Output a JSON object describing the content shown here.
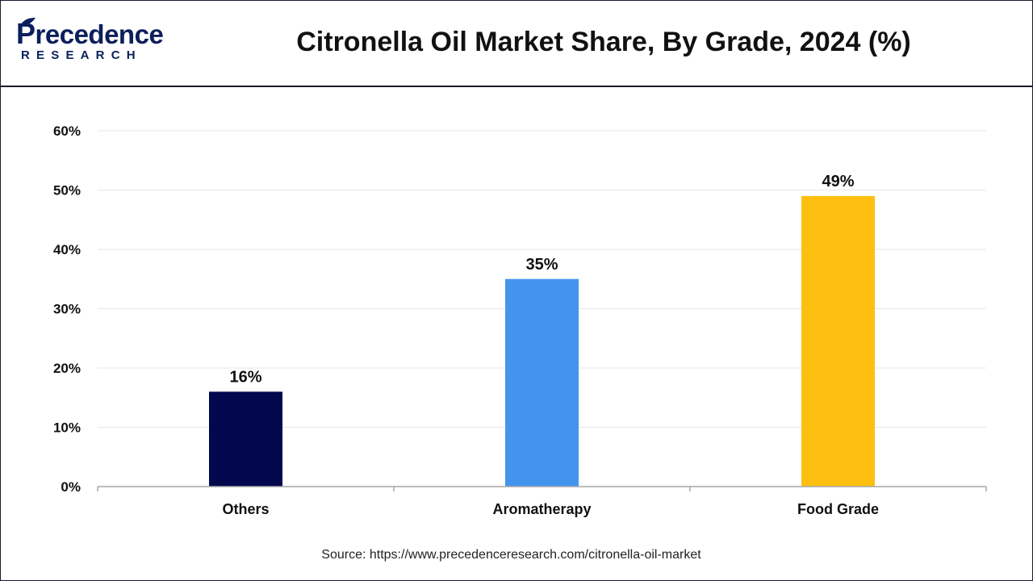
{
  "header": {
    "logo_word": "recedence",
    "logo_sub": "RESEARCH",
    "title": "Citronella Oil Market Share, By Grade, 2024 (%)"
  },
  "source": "Source: https://www.precedenceresearch.com/citronella-oil-market",
  "colors": {
    "brand": "#0b1f5c",
    "others": "#03074e",
    "aromatherapy": "#4494ee",
    "food_grade": "#fdc010"
  },
  "chart_data": {
    "type": "bar",
    "title": "Citronella Oil Market Share, By Grade, 2024 (%)",
    "categories": [
      "Others",
      "Aromatherapy",
      "Food Grade"
    ],
    "values": [
      16,
      35,
      49
    ],
    "value_labels": [
      "16%",
      "35%",
      "49%"
    ],
    "colors": [
      "#03074e",
      "#4494ee",
      "#fdc010"
    ],
    "ylim": [
      0,
      60
    ],
    "yticks": [
      0,
      10,
      20,
      30,
      40,
      50,
      60
    ],
    "ytick_labels": [
      "0%",
      "10%",
      "20%",
      "30%",
      "40%",
      "50%",
      "60%"
    ],
    "xlabel": "",
    "ylabel": "",
    "grid": true,
    "legend": "none"
  }
}
